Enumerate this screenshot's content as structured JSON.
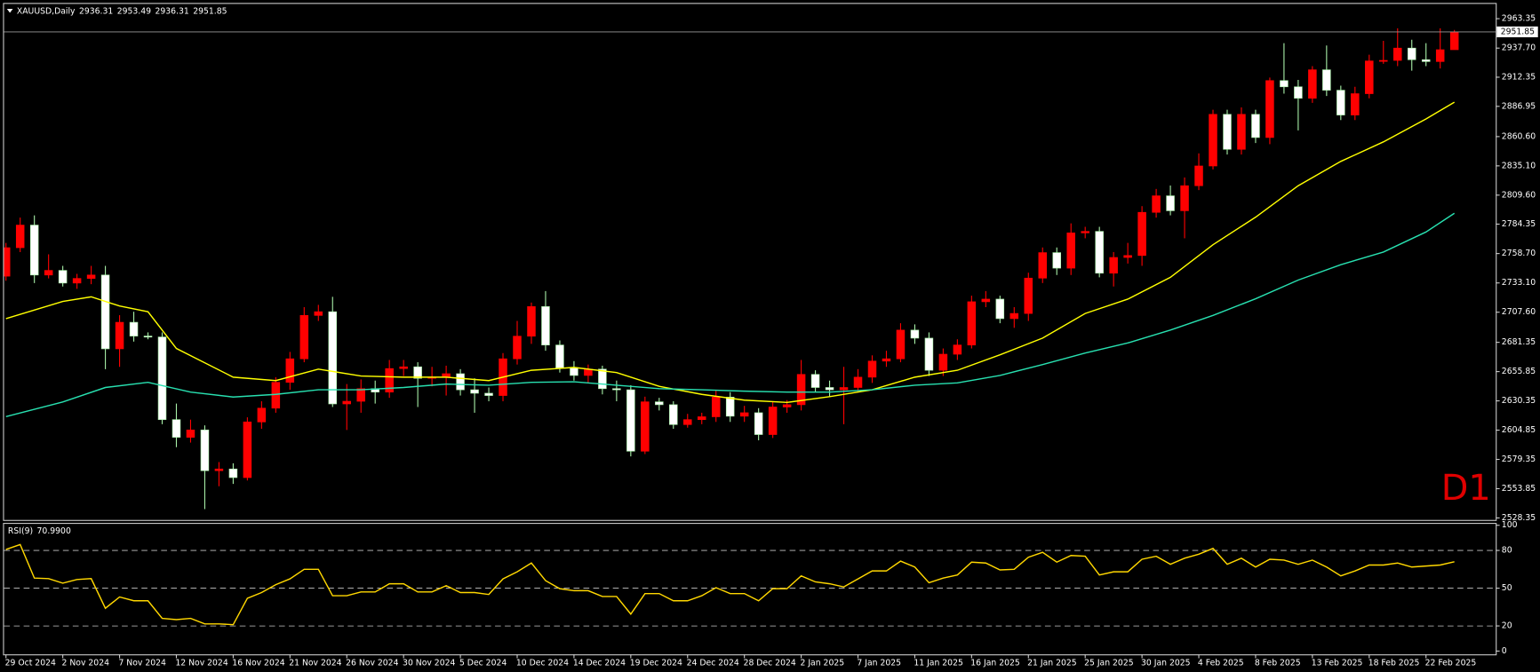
{
  "chart_data": {
    "type": "candlestick",
    "symbol": "XAUUSD,Daily",
    "watermark": "D1",
    "categories": [
      "29 Oct 2024",
      null,
      null,
      null,
      "2 Nov 2024",
      null,
      null,
      null,
      "7 Nov 2024",
      null,
      null,
      null,
      "12 Nov 2024",
      null,
      null,
      null,
      "16 Nov 2024",
      null,
      null,
      null,
      "21 Nov 2024",
      null,
      null,
      null,
      "26 Nov 2024",
      null,
      null,
      null,
      "30 Nov 2024",
      null,
      null,
      null,
      "5 Dec 2024",
      null,
      null,
      null,
      "10 Dec 2024",
      null,
      null,
      null,
      "14 Dec 2024",
      null,
      null,
      null,
      "19 Dec 2024",
      null,
      null,
      null,
      "24 Dec 2024",
      null,
      null,
      null,
      "28 Dec 2024",
      null,
      null,
      null,
      "2 Jan 2025",
      null,
      null,
      null,
      "7 Jan 2025",
      null,
      null,
      null,
      "11 Jan 2025",
      null,
      null,
      null,
      "16 Jan 2025",
      null,
      null,
      null,
      "21 Jan 2025",
      null,
      null,
      null,
      "25 Jan 2025",
      null,
      null,
      null,
      "30 Jan 2025",
      null,
      null,
      null,
      "4 Feb 2025",
      null,
      null,
      null,
      "8 Feb 2025",
      null,
      null,
      null,
      "13 Feb 2025",
      null,
      null,
      null,
      "18 Feb 2025",
      null,
      null,
      null,
      "22 Feb 2025",
      null,
      null
    ],
    "open": [
      2739,
      2763.8,
      2783.5,
      2740,
      2744,
      2733,
      2737,
      2740,
      2675.7,
      2698.8,
      2686.8,
      2686,
      2614,
      2598.6,
      2605,
      2569.5,
      2571,
      2563.5,
      2612,
      2624,
      2646.5,
      2667,
      2704.8,
      2708,
      2627.7,
      2630,
      2641,
      2638,
      2658.5,
      2660,
      2650,
      2651,
      2654,
      2640,
      2637,
      2635,
      2667,
      2686.7,
      2712.5,
      2679,
      2659,
      2652.5,
      2658,
      2641,
      2640,
      2586.5,
      2629.5,
      2627,
      2609.7,
      2614,
      2616.5,
      2633.6,
      2617,
      2620,
      2601,
      2625,
      2627,
      2653.4,
      2642,
      2640,
      2642,
      2651,
      2665,
      2667,
      2692,
      2685,
      2657,
      2671,
      2679,
      2716.7,
      2719,
      2702,
      2706.5,
      2737.3,
      2759.5,
      2746,
      2776.7,
      2778,
      2741.6,
      2755.3,
      2757,
      2794.6,
      2809,
      2796,
      2817.8,
      2835,
      2880,
      2849.5,
      2880,
      2859.8,
      2909.4,
      2904,
      2894,
      2918.8,
      2901,
      2879.4,
      2898,
      2926.5,
      2927,
      2937.7,
      2927.6,
      2926,
      2936.31
    ],
    "high": [
      2768,
      2790,
      2792,
      2758,
      2748,
      2741,
      2748,
      2748,
      2705,
      2708,
      2690,
      2690,
      2628,
      2614,
      2609,
      2577,
      2576,
      2616,
      2630,
      2651,
      2673,
      2712,
      2714,
      2721,
      2645,
      2649,
      2648,
      2666,
      2666,
      2664,
      2660,
      2661,
      2658,
      2650,
      2642,
      2672,
      2700,
      2716,
      2726,
      2683,
      2665,
      2662,
      2661,
      2648,
      2644,
      2634,
      2633,
      2630,
      2619,
      2620,
      2640,
      2638,
      2626,
      2624,
      2630,
      2631,
      2666,
      2657,
      2648,
      2660,
      2658,
      2670,
      2674,
      2698,
      2697,
      2690,
      2676,
      2684,
      2722,
      2726,
      2722,
      2712,
      2742,
      2764,
      2764,
      2785,
      2782,
      2782,
      2760,
      2768,
      2800,
      2815,
      2818,
      2825,
      2846,
      2884,
      2884,
      2886,
      2884,
      2912,
      2942,
      2910,
      2922,
      2940,
      2905,
      2904,
      2932,
      2944,
      2955,
      2945,
      2942,
      2955,
      2953.49
    ],
    "low": [
      2735,
      2760,
      2733,
      2737,
      2730,
      2728,
      2732,
      2658,
      2660,
      2682,
      2684,
      2610,
      2590,
      2594,
      2536,
      2556,
      2558,
      2561,
      2606,
      2620,
      2640,
      2664,
      2700,
      2625,
      2605,
      2620,
      2628,
      2633,
      2652,
      2625,
      2643,
      2635,
      2635,
      2620,
      2630,
      2630,
      2662,
      2680,
      2674,
      2655,
      2648,
      2646,
      2636,
      2630,
      2582,
      2584,
      2622,
      2606,
      2607,
      2610,
      2612,
      2612,
      2612,
      2596,
      2598,
      2620,
      2622,
      2638,
      2634,
      2610,
      2638,
      2646,
      2660,
      2664,
      2680,
      2652,
      2652,
      2666,
      2676,
      2712,
      2698,
      2694,
      2700,
      2733,
      2740,
      2740,
      2772,
      2738,
      2730,
      2750,
      2748,
      2790,
      2792,
      2772,
      2814,
      2832,
      2845,
      2845,
      2855,
      2854,
      2898,
      2866,
      2890,
      2896,
      2875,
      2875,
      2894,
      2924,
      2922,
      2918,
      2922,
      2920,
      2936.31
    ],
    "close": [
      2763.8,
      2783.5,
      2740,
      2744,
      2733,
      2737,
      2740,
      2675.7,
      2698.8,
      2686.8,
      2686,
      2614,
      2598.6,
      2605,
      2569.5,
      2571,
      2563.5,
      2612,
      2624,
      2646.5,
      2667,
      2704.8,
      2708,
      2627.7,
      2630,
      2641,
      2638,
      2658.5,
      2660,
      2650,
      2651,
      2654,
      2640,
      2637,
      2635,
      2667,
      2686.7,
      2712.5,
      2679,
      2659,
      2652.5,
      2658,
      2641,
      2640,
      2586.5,
      2629.5,
      2627,
      2609.7,
      2614,
      2616.5,
      2633.6,
      2617,
      2620,
      2601,
      2625,
      2627,
      2653.4,
      2642,
      2640,
      2642,
      2651,
      2665,
      2667,
      2692,
      2685,
      2657,
      2671,
      2679,
      2716.7,
      2719,
      2702,
      2706.5,
      2737.3,
      2759.5,
      2746,
      2776.7,
      2778,
      2741.6,
      2755.3,
      2757,
      2794.6,
      2809,
      2796,
      2817.8,
      2835,
      2880,
      2849.5,
      2880,
      2859.8,
      2909.4,
      2904,
      2894,
      2918.8,
      2901,
      2879.4,
      2898,
      2926.5,
      2927,
      2937.7,
      2927.6,
      2926,
      2936.31,
      2951.85
    ],
    "up_color": "#ff0000",
    "down_color": "#ffffff",
    "wick_color": "#a8f0a8",
    "price_line_color": "#9a9a9a",
    "ylim": [
      2526.6,
      2976.2
    ],
    "yticks": [
      2963.35,
      {
        "value": 2937.7,
        "label": "2937.70"
      },
      2912.35,
      2886.95,
      {
        "value": 2860.6,
        "label": "2860.60"
      },
      {
        "value": 2835.1,
        "label": "2835.10"
      },
      {
        "value": 2809.6,
        "label": "2809.60"
      },
      2784.35,
      {
        "value": 2758.7,
        "label": "2758.70"
      },
      {
        "value": 2733.1,
        "label": "2733.10"
      },
      {
        "value": 2707.6,
        "label": "2707.60"
      },
      2681.35,
      2655.85,
      2630.35,
      2604.85,
      2579.35,
      2553.85,
      2528.35
    ],
    "overlays": [
      {
        "type": "line",
        "color": "#ffff00",
        "x": [
          0,
          4,
          6,
          8,
          10,
          12,
          16,
          19,
          22,
          25,
          28,
          31,
          34,
          37,
          40,
          43,
          46,
          49,
          52,
          55,
          58,
          61,
          64,
          67,
          70,
          73,
          76,
          79,
          82,
          85,
          88,
          91,
          94,
          97,
          100,
          102
        ],
        "values": [
          2702,
          2717,
          2721,
          2713,
          2708,
          2676,
          2651,
          2648,
          2658,
          2652,
          2651,
          2651,
          2648,
          2657,
          2659.5,
          2655,
          2643,
          2636,
          2631,
          2629,
          2634,
          2640,
          2651,
          2657,
          2670.5,
          2685,
          2706.5,
          2719,
          2738,
          2766.4,
          2790.4,
          2817.8,
          2839,
          2856,
          2876,
          2890.6
        ]
      },
      {
        "type": "line",
        "color": "#28e0b0",
        "x": [
          0,
          4,
          7,
          10,
          13,
          16,
          19,
          22,
          25,
          28,
          31,
          34,
          37,
          40,
          43,
          46,
          49,
          52,
          55,
          58,
          61,
          64,
          67,
          70,
          73,
          76,
          79,
          82,
          85,
          88,
          91,
          94,
          97,
          100,
          102
        ],
        "values": [
          2616.6,
          2629.4,
          2642,
          2646.5,
          2638,
          2633.7,
          2636,
          2640,
          2640,
          2642,
          2645,
          2644,
          2646.5,
          2647,
          2644,
          2641,
          2640,
          2638.8,
          2638,
          2638,
          2640,
          2644,
          2646,
          2652.5,
          2662,
          2672,
          2680.8,
          2692,
          2704.8,
          2719.3,
          2735.6,
          2749,
          2760,
          2777.5,
          2793.8
        ]
      }
    ],
    "indicator": {
      "type": "line",
      "name": "RSI(9)",
      "color": "#ffd700",
      "values": [
        80.8,
        84.7,
        58,
        57.6,
        54,
        56.9,
        57.6,
        34,
        43,
        40,
        40,
        26,
        25,
        26,
        21.6,
        21.6,
        21,
        42,
        46.5,
        52.8,
        57.4,
        65,
        65,
        44,
        44,
        47,
        47,
        53.5,
        53.5,
        47,
        47,
        52,
        46.5,
        46.5,
        45,
        57.4,
        63,
        70,
        56,
        49.6,
        48,
        48,
        43.4,
        43.4,
        29.4,
        45.7,
        45.7,
        40,
        40,
        44,
        50.4,
        45.7,
        45.7,
        40,
        49.6,
        49.6,
        59.8,
        55,
        53.5,
        51,
        57.4,
        63.7,
        63.7,
        71.5,
        66.8,
        54.3,
        58,
        60.5,
        70.7,
        70,
        64.5,
        65,
        74.6,
        78.5,
        70.7,
        76,
        75.4,
        60.5,
        63,
        63,
        73,
        75.4,
        69,
        73.8,
        77,
        81.6,
        69,
        73.8,
        66.8,
        73,
        72.3,
        69,
        72.3,
        66.8,
        59.8,
        63.7,
        68.4,
        68.4,
        70,
        66.8,
        67.6,
        68.4,
        70.99
      ],
      "value_labels": [
        null,
        null,
        null,
        null,
        null,
        null,
        null,
        null,
        null,
        null,
        null,
        null,
        null,
        null,
        null,
        null,
        null,
        null,
        null,
        null,
        null,
        null,
        null,
        null,
        null,
        null,
        null,
        null,
        null,
        null,
        null,
        null,
        null,
        null,
        null,
        null,
        null,
        null,
        null,
        null,
        null,
        null,
        null,
        null,
        null,
        null,
        null,
        null,
        null,
        null,
        null,
        null,
        null,
        null,
        null,
        null,
        null,
        null,
        null,
        null,
        null,
        null,
        null,
        null,
        null,
        null,
        null,
        null,
        null,
        null,
        null,
        null,
        null,
        null,
        null,
        null,
        null,
        null,
        null,
        null,
        null,
        null,
        null,
        null,
        null,
        null,
        null,
        null,
        null,
        null,
        null,
        null,
        null,
        null,
        null,
        null,
        null,
        null,
        null,
        null,
        null,
        null,
        "70.9900"
      ],
      "ylim": [
        -2.6,
        101.9
      ],
      "yticks": [
        100,
        80,
        50,
        20,
        0
      ],
      "levels": [
        80,
        50,
        20
      ]
    }
  }
}
